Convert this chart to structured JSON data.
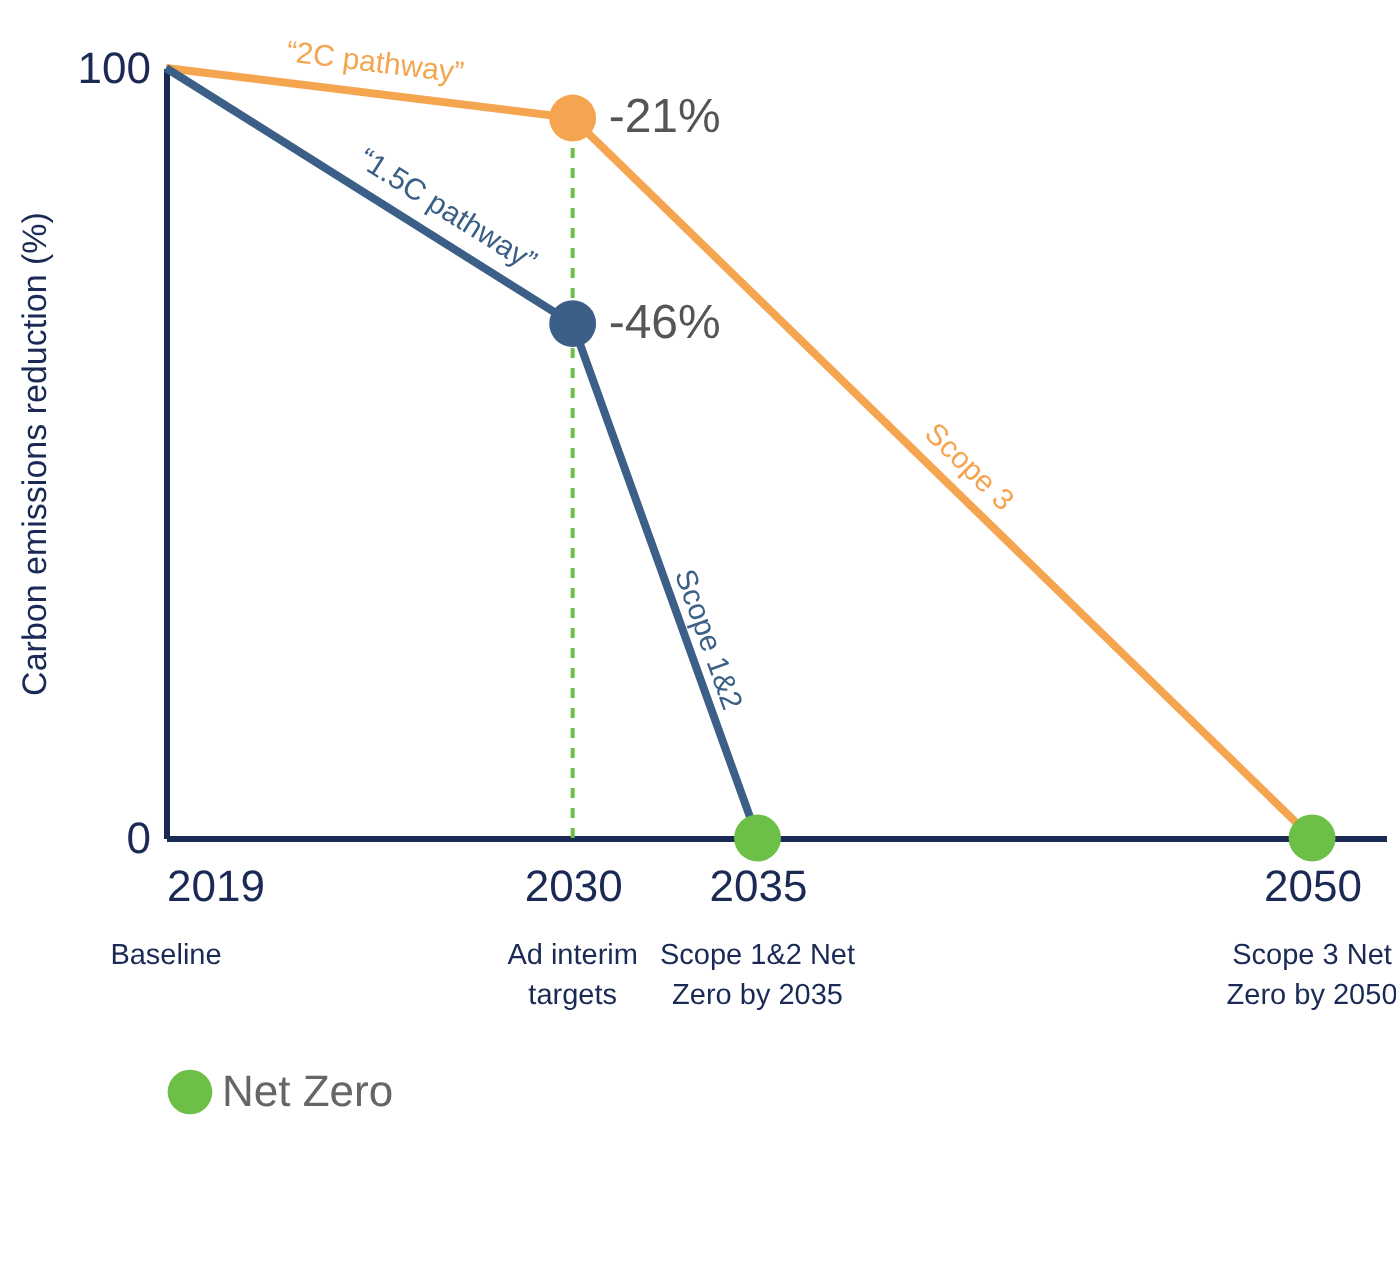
{
  "chart_data": {
    "type": "line",
    "ylabel": "Carbon emissions reduction (%)",
    "xlim": [
      2019,
      2052
    ],
    "ylim": [
      0,
      100
    ],
    "xticks": [
      2019,
      2030,
      2035,
      2050
    ],
    "yticks": [
      0,
      100
    ],
    "grid": false,
    "legend": "bottom",
    "marker": "circle",
    "series": [
      {
        "marker": "none",
        "color": "#f5a550",
        "x": [
          2019,
          2030,
          2050
        ],
        "values": [
          100,
          93.5,
          0
        ]
      },
      {
        "marker": "none",
        "color": "#3b5f86",
        "x": [
          2019,
          2030,
          2035
        ],
        "values": [
          100,
          66.8,
          0
        ]
      },
      {
        "type": "scatter",
        "color": "#f5a550",
        "x": [
          2030
        ],
        "values": [
          93.5
        ]
      },
      {
        "type": "scatter",
        "color": "#3b5f86",
        "x": [
          2030
        ],
        "values": [
          66.8
        ]
      },
      {
        "type": "scatter",
        "name": "Net Zero",
        "color": "#6cbf47",
        "x": [
          2035,
          2050
        ],
        "values": [
          0,
          0
        ]
      }
    ],
    "ref_lines": [
      {
        "axis": "x",
        "value": 2030,
        "color": "#6cbf47",
        "line_style": "dashed"
      }
    ],
    "annotations": [
      {
        "text": "-21%",
        "x": 2030,
        "y": 93.5
      },
      {
        "text": "-46%",
        "x": 2030,
        "y": 66.8
      },
      {
        "text": "“2C pathway”",
        "x": 2024.5,
        "y": 96.7
      },
      {
        "text": "“1.5C pathway”",
        "x": 2026,
        "y": 78.9
      },
      {
        "text": "Scope 3",
        "x": 2040,
        "y": 46.7
      },
      {
        "text": "Scope 1&2",
        "x": 2033,
        "y": 26.7
      },
      "Baseline",
      "Ad interim targets",
      "Scope 1&2 Net Zero by 2035",
      "Scope 3 Net Zero by 2050"
    ]
  }
}
